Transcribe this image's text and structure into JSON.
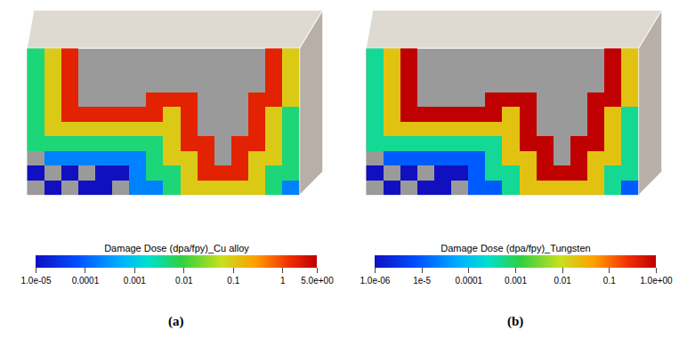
{
  "chart_data": [
    {
      "type": "heatmap",
      "caption": "(a)",
      "tick_labels": false,
      "log": true,
      "colorbar": {
        "title": "Damage Dose (dpa/fpy)_Cu alloy",
        "range": [
          1e-05,
          5
        ],
        "ticks": [
          {
            "value": 1e-05,
            "label": "1.0e-05"
          },
          0.0001,
          0.001,
          0.01,
          0.1,
          1,
          {
            "value": 5,
            "label": "5.0e+00"
          }
        ]
      },
      "z": [
        [
          0.005,
          0.1,
          2,
          null,
          null,
          null,
          null,
          null,
          null,
          null,
          null,
          null,
          null,
          null,
          2,
          0.1
        ],
        [
          0.005,
          0.1,
          2,
          null,
          null,
          null,
          null,
          null,
          null,
          null,
          null,
          null,
          null,
          null,
          2,
          0.1
        ],
        [
          0.005,
          0.1,
          2,
          null,
          null,
          null,
          null,
          null,
          null,
          null,
          null,
          null,
          null,
          null,
          2,
          0.1
        ],
        [
          0.005,
          0.1,
          2,
          null,
          null,
          null,
          null,
          2,
          2,
          2,
          null,
          null,
          null,
          2,
          2,
          0.1
        ],
        [
          0.005,
          0.1,
          2,
          2,
          2,
          2,
          2,
          2,
          0.1,
          2,
          null,
          null,
          null,
          2,
          0.1,
          0.005
        ],
        [
          0.005,
          0.1,
          0.1,
          0.1,
          0.1,
          0.1,
          0.1,
          0.1,
          0.1,
          2,
          null,
          null,
          null,
          2,
          0.1,
          0.005
        ],
        [
          0.005,
          0.005,
          0.005,
          0.005,
          0.005,
          0.005,
          0.005,
          0.005,
          0.1,
          2,
          2,
          null,
          2,
          2,
          0.1,
          0.005
        ],
        [
          null,
          0.0002,
          0.0002,
          0.0002,
          0.0002,
          0.0002,
          0.0002,
          0.005,
          0.1,
          0.1,
          2,
          null,
          2,
          0.1,
          0.1,
          0.005
        ],
        [
          1e-05,
          null,
          1e-05,
          null,
          1e-05,
          1e-05,
          0.0002,
          0.005,
          0.005,
          0.1,
          2,
          2,
          2,
          0.1,
          0.005,
          0.005
        ],
        [
          null,
          1e-05,
          null,
          1e-05,
          1e-05,
          null,
          0.0002,
          0.0002,
          0.005,
          0.1,
          0.1,
          0.1,
          0.1,
          0.1,
          0.005,
          0.0002
        ]
      ]
    },
    {
      "type": "heatmap",
      "caption": "(b)",
      "tick_labels": false,
      "log": true,
      "colorbar": {
        "title": "Damage Dose (dpa/fpy)_Tungsten",
        "range": [
          1e-06,
          1
        ],
        "ticks": [
          {
            "value": 1e-06,
            "label": "1.0e-06"
          },
          {
            "value": 1e-05,
            "label": "1e-5"
          },
          0.0001,
          0.001,
          0.01,
          0.1,
          {
            "value": 1,
            "label": "1.0e+00"
          }
        ]
      },
      "z": [
        [
          0.0005,
          0.02,
          1,
          null,
          null,
          null,
          null,
          null,
          null,
          null,
          null,
          null,
          null,
          null,
          1,
          0.02
        ],
        [
          0.0005,
          0.02,
          1,
          null,
          null,
          null,
          null,
          null,
          null,
          null,
          null,
          null,
          null,
          null,
          1,
          0.02
        ],
        [
          0.0005,
          0.02,
          1,
          null,
          null,
          null,
          null,
          null,
          null,
          null,
          null,
          null,
          null,
          null,
          1,
          0.02
        ],
        [
          0.0005,
          0.02,
          1,
          null,
          null,
          null,
          null,
          1,
          1,
          1,
          null,
          null,
          null,
          1,
          1,
          0.02
        ],
        [
          0.0005,
          0.02,
          1,
          1,
          1,
          1,
          1,
          1,
          0.02,
          1,
          null,
          null,
          null,
          1,
          0.02,
          0.0005
        ],
        [
          0.0005,
          0.02,
          0.02,
          0.02,
          0.02,
          0.02,
          0.02,
          0.02,
          0.02,
          1,
          null,
          null,
          null,
          1,
          0.02,
          0.0005
        ],
        [
          0.0005,
          0.0005,
          0.0005,
          0.0005,
          0.0005,
          0.0005,
          0.0005,
          0.0005,
          0.02,
          1,
          1,
          null,
          1,
          1,
          0.02,
          0.0005
        ],
        [
          null,
          1e-05,
          1e-05,
          1e-05,
          1e-05,
          1e-05,
          1e-05,
          0.0005,
          0.02,
          0.02,
          1,
          null,
          1,
          0.02,
          0.02,
          0.0005
        ],
        [
          1e-06,
          null,
          1e-06,
          null,
          1e-06,
          1e-06,
          1e-05,
          0.0005,
          0.0005,
          0.02,
          1,
          1,
          1,
          0.02,
          0.0005,
          0.0005
        ],
        [
          null,
          1e-06,
          null,
          1e-06,
          1e-06,
          null,
          1e-05,
          1e-05,
          0.0005,
          0.02,
          0.02,
          0.02,
          0.02,
          0.02,
          0.0005,
          1e-05
        ]
      ]
    }
  ]
}
